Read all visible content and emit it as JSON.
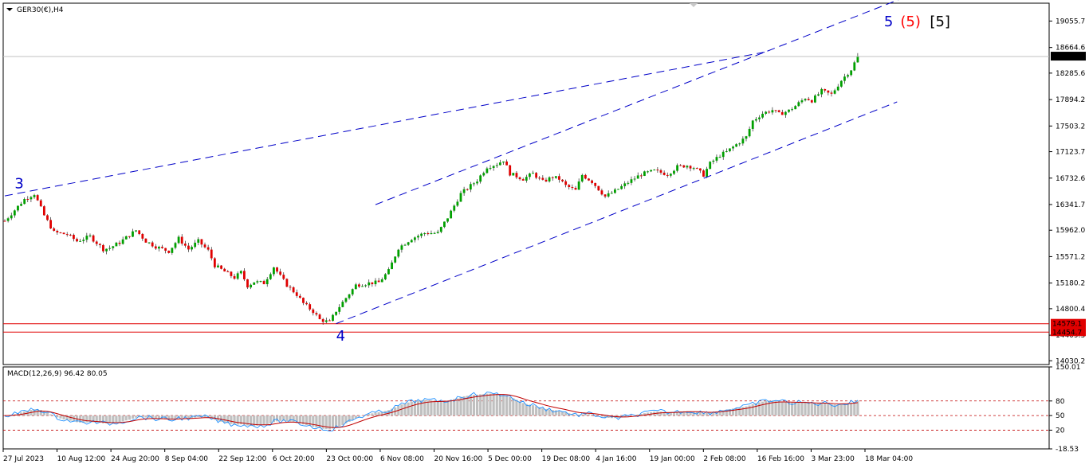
{
  "symbol_title": "GER30(€),H4",
  "chart_data": {
    "type": "candlestick",
    "price_axis": {
      "ticks": [
        "19055.7",
        "18664.6",
        "18285.6",
        "17894.2",
        "17503.2",
        "17123.7",
        "16732.6",
        "16341.7",
        "15962.0",
        "15571.2",
        "15180.2",
        "14800.4",
        "14409.3",
        "14030.2"
      ],
      "ylim": [
        13975,
        19320
      ]
    },
    "time_axis": {
      "ticks": [
        "27 Jul 2023",
        "10 Aug 12:00",
        "24 Aug 20:00",
        "8 Sep 04:00",
        "22 Sep 12:00",
        "6 Oct 20:00",
        "23 Oct 00:00",
        "6 Nov 08:00",
        "20 Nov 16:00",
        "5 Dec 00:00",
        "19 Dec 08:00",
        "4 Jan 16:00",
        "19 Jan 00:00",
        "2 Feb 08:00",
        "16 Feb 16:00",
        "3 Mar 23:00",
        "18 Mar 04:00"
      ]
    },
    "price_path": [
      [
        0,
        16100
      ],
      [
        6,
        16420
      ],
      [
        9,
        16500
      ],
      [
        12,
        16180
      ],
      [
        15,
        15930
      ],
      [
        19,
        15900
      ],
      [
        22,
        15800
      ],
      [
        26,
        15870
      ],
      [
        30,
        15680
      ],
      [
        32,
        15700
      ],
      [
        35,
        15780
      ],
      [
        38,
        15890
      ],
      [
        40,
        15960
      ],
      [
        43,
        15800
      ],
      [
        46,
        15720
      ],
      [
        50,
        15650
      ],
      [
        53,
        15840
      ],
      [
        56,
        15680
      ],
      [
        59,
        15800
      ],
      [
        62,
        15660
      ],
      [
        64,
        15440
      ],
      [
        67,
        15350
      ],
      [
        70,
        15260
      ],
      [
        72,
        15340
      ],
      [
        74,
        15140
      ],
      [
        76,
        15200
      ],
      [
        79,
        15180
      ],
      [
        82,
        15420
      ],
      [
        84,
        15280
      ],
      [
        86,
        15150
      ],
      [
        89,
        15010
      ],
      [
        91,
        14880
      ],
      [
        94,
        14760
      ],
      [
        96,
        14640
      ],
      [
        99,
        14600
      ],
      [
        101,
        14770
      ],
      [
        104,
        14960
      ],
      [
        107,
        15150
      ],
      [
        111,
        15180
      ],
      [
        114,
        15190
      ],
      [
        117,
        15360
      ],
      [
        120,
        15700
      ],
      [
        124,
        15840
      ],
      [
        128,
        15920
      ],
      [
        132,
        15920
      ],
      [
        135,
        16150
      ],
      [
        139,
        16500
      ],
      [
        144,
        16700
      ],
      [
        147,
        16900
      ],
      [
        150,
        16940
      ],
      [
        152,
        17000
      ],
      [
        154,
        16800
      ],
      [
        158,
        16720
      ],
      [
        161,
        16800
      ],
      [
        164,
        16680
      ],
      [
        167,
        16750
      ],
      [
        169,
        16720
      ],
      [
        171,
        16620
      ],
      [
        174,
        16550
      ],
      [
        176,
        16780
      ],
      [
        179,
        16680
      ],
      [
        183,
        16460
      ],
      [
        186,
        16540
      ],
      [
        190,
        16670
      ],
      [
        194,
        16790
      ],
      [
        198,
        16840
      ],
      [
        202,
        16790
      ],
      [
        205,
        16900
      ],
      [
        208,
        16920
      ],
      [
        210,
        16890
      ],
      [
        213,
        16780
      ],
      [
        215,
        16950
      ],
      [
        218,
        17070
      ],
      [
        220,
        17120
      ],
      [
        223,
        17230
      ],
      [
        226,
        17340
      ],
      [
        228,
        17580
      ],
      [
        231,
        17690
      ],
      [
        234,
        17740
      ],
      [
        236,
        17680
      ],
      [
        239,
        17730
      ],
      [
        241,
        17800
      ],
      [
        244,
        17920
      ],
      [
        246,
        17880
      ],
      [
        249,
        18020
      ],
      [
        252,
        17970
      ],
      [
        255,
        18180
      ],
      [
        258,
        18340
      ],
      [
        260,
        18530
      ]
    ],
    "last_bar_index": 260,
    "levels": [
      {
        "name": "current",
        "value": 18530.6,
        "label": "18530.6",
        "color": "#c0c0c0"
      },
      {
        "name": "support-1",
        "value": 14579.1,
        "label": "14579.1",
        "color": "#e00000"
      },
      {
        "name": "support-2",
        "value": 14454.7,
        "label": "14454.7",
        "color": "#e00000"
      }
    ],
    "trendlines": [
      {
        "name": "upper-wedge-line",
        "from": [
          0,
          16470
        ],
        "to": [
          232,
          18600
        ]
      },
      {
        "name": "channel-upper",
        "from": [
          113,
          16340
        ],
        "to": [
          275,
          19420
        ]
      },
      {
        "name": "channel-lower",
        "from": [
          101,
          14580
        ],
        "to": [
          272,
          17860
        ]
      }
    ],
    "wave_labels": [
      {
        "text": "3",
        "x": 3,
        "price": 16580,
        "color": "#0000c8"
      },
      {
        "text": "4",
        "x": 101,
        "price": 14330,
        "color": "#0000c8"
      },
      {
        "text": "5",
        "x": 268,
        "price": 18980,
        "color": "#0000c8"
      },
      {
        "text": "(5)",
        "x": 273,
        "price": 18980,
        "color": "#ff0000"
      },
      {
        "text": "[5]",
        "x": 282,
        "price": 18980,
        "color": "#000000"
      }
    ],
    "macd": {
      "label": "MACD(12,26,9) 96.42 80.05",
      "ticks": [
        "150.01",
        "80",
        "50",
        "20",
        "-18.53"
      ],
      "ylim": [
        -18.53,
        150.01
      ],
      "dotted_levels": [
        80,
        50,
        20
      ],
      "signal_color": "#c00000",
      "macd_line_color": "#1e90ff",
      "histogram_color": "#c0c0c0"
    },
    "colors": {
      "bull": "#00a000",
      "bear": "#e00000",
      "wick": "#000000",
      "background": "#ffffff",
      "frame": "#000000",
      "current_label_bg": "#000000",
      "support_label_bg": "#e00000"
    }
  }
}
